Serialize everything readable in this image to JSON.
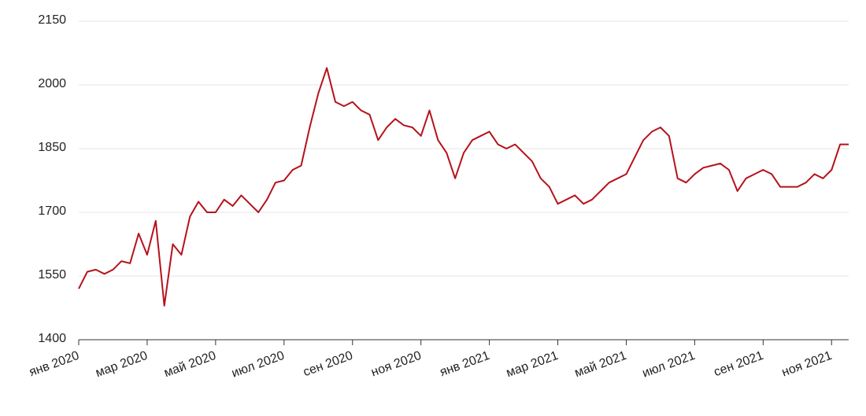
{
  "chart_data": {
    "type": "line",
    "categories": [
      "янв 2020",
      null,
      null,
      null,
      null,
      null,
      null,
      null,
      "мар 2020",
      null,
      null,
      null,
      null,
      null,
      null,
      null,
      "май 2020",
      null,
      null,
      null,
      null,
      null,
      null,
      null,
      "июл 2020",
      null,
      null,
      null,
      null,
      null,
      null,
      null,
      "сен 2020",
      null,
      null,
      null,
      null,
      null,
      null,
      null,
      "ноя 2020",
      null,
      null,
      null,
      null,
      null,
      null,
      null,
      "янв 2021",
      null,
      null,
      null,
      null,
      null,
      null,
      null,
      "мар 2021",
      null,
      null,
      null,
      null,
      null,
      null,
      null,
      "май 2021",
      null,
      null,
      null,
      null,
      null,
      null,
      null,
      "июл 2021",
      null,
      null,
      null,
      null,
      null,
      null,
      null,
      "сен 2021",
      null,
      null,
      null,
      null,
      null,
      null,
      null,
      "ноя 2021",
      null,
      null
    ],
    "series": [
      {
        "color": "#b5121b",
        "values": [
          1520,
          1560,
          1565,
          1555,
          1565,
          1585,
          1580,
          1650,
          1600,
          1680,
          1480,
          1625,
          1600,
          1690,
          1725,
          1700,
          1700,
          1730,
          1715,
          1740,
          1720,
          1700,
          1730,
          1770,
          1775,
          1800,
          1810,
          1900,
          1980,
          2040,
          1960,
          1950,
          1960,
          1940,
          1930,
          1870,
          1900,
          1920,
          1905,
          1900,
          1880,
          1940,
          1870,
          1840,
          1780,
          1840,
          1870,
          1880,
          1890,
          1860,
          1850,
          1860,
          1840,
          1820,
          1780,
          1760,
          1720,
          1730,
          1740,
          1720,
          1730,
          1750,
          1770,
          1780,
          1790,
          1830,
          1870,
          1890,
          1900,
          1880,
          1780,
          1770,
          1790,
          1805,
          1810,
          1815,
          1800,
          1750,
          1780,
          1790,
          1800,
          1790,
          1760,
          1760,
          1760,
          1770,
          1790,
          1780,
          1800,
          1860,
          1860
        ]
      }
    ],
    "ylim": [
      1400,
      2150
    ],
    "yticks": [
      1400,
      1550,
      1700,
      1850,
      2000,
      2150
    ],
    "grid": true
  }
}
